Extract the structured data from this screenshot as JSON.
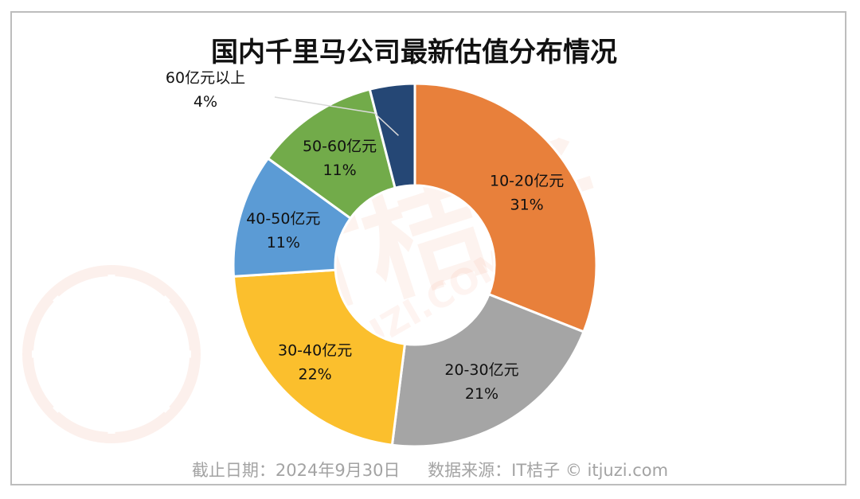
{
  "chart_data": {
    "type": "pie",
    "title": "国内千里马公司最新估值分布情况",
    "donut": true,
    "slices": [
      {
        "name": "10-20亿元",
        "value": 31,
        "label": "31%",
        "color": "#e8803b"
      },
      {
        "name": "20-30亿元",
        "value": 21,
        "label": "21%",
        "color": "#a5a5a5"
      },
      {
        "name": "30-40亿元",
        "value": 22,
        "label": "22%",
        "color": "#fbbf2d"
      },
      {
        "name": "40-50亿元",
        "value": 11,
        "label": "11%",
        "color": "#5b9bd5"
      },
      {
        "name": "50-60亿元",
        "value": 11,
        "label": "11%",
        "color": "#72ab4a"
      },
      {
        "name": "60亿元以上",
        "value": 4,
        "label": "4%",
        "color": "#254775"
      }
    ]
  },
  "footer": {
    "date": "截止日期：2024年9月30日",
    "source": "数据来源：IT桔子 © itjuzi.com"
  },
  "watermark": {
    "brand": "IT桔子",
    "url": "ITJUZI.COM"
  }
}
